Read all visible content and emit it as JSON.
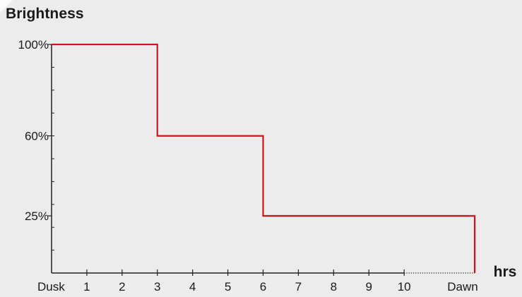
{
  "chart_data": {
    "type": "line",
    "step": true,
    "title": "Brightness",
    "xlabel": "hrs",
    "ylabel": "",
    "x_ticks": [
      {
        "value": 0,
        "label": "Dusk"
      },
      {
        "value": 1,
        "label": "1"
      },
      {
        "value": 2,
        "label": "2"
      },
      {
        "value": 3,
        "label": "3"
      },
      {
        "value": 4,
        "label": "4"
      },
      {
        "value": 5,
        "label": "5"
      },
      {
        "value": 6,
        "label": "6"
      },
      {
        "value": 7,
        "label": "7"
      },
      {
        "value": 8,
        "label": "8"
      },
      {
        "value": 9,
        "label": "9"
      },
      {
        "value": 10,
        "label": "10"
      },
      {
        "value": 12,
        "label": "Dawn"
      }
    ],
    "y_ticks": [
      {
        "value": 25,
        "label": "25%"
      },
      {
        "value": 60,
        "label": "60%"
      },
      {
        "value": 100,
        "label": "100%"
      }
    ],
    "xlim": [
      0,
      12
    ],
    "ylim": [
      0,
      100
    ],
    "dotted_axis_from": 10,
    "series": [
      {
        "color": "#d0141e",
        "points": [
          [
            0,
            100
          ],
          [
            3,
            100
          ],
          [
            3,
            60
          ],
          [
            6,
            60
          ],
          [
            6,
            25
          ],
          [
            12,
            25
          ],
          [
            12,
            0
          ]
        ]
      }
    ],
    "grid": false
  }
}
